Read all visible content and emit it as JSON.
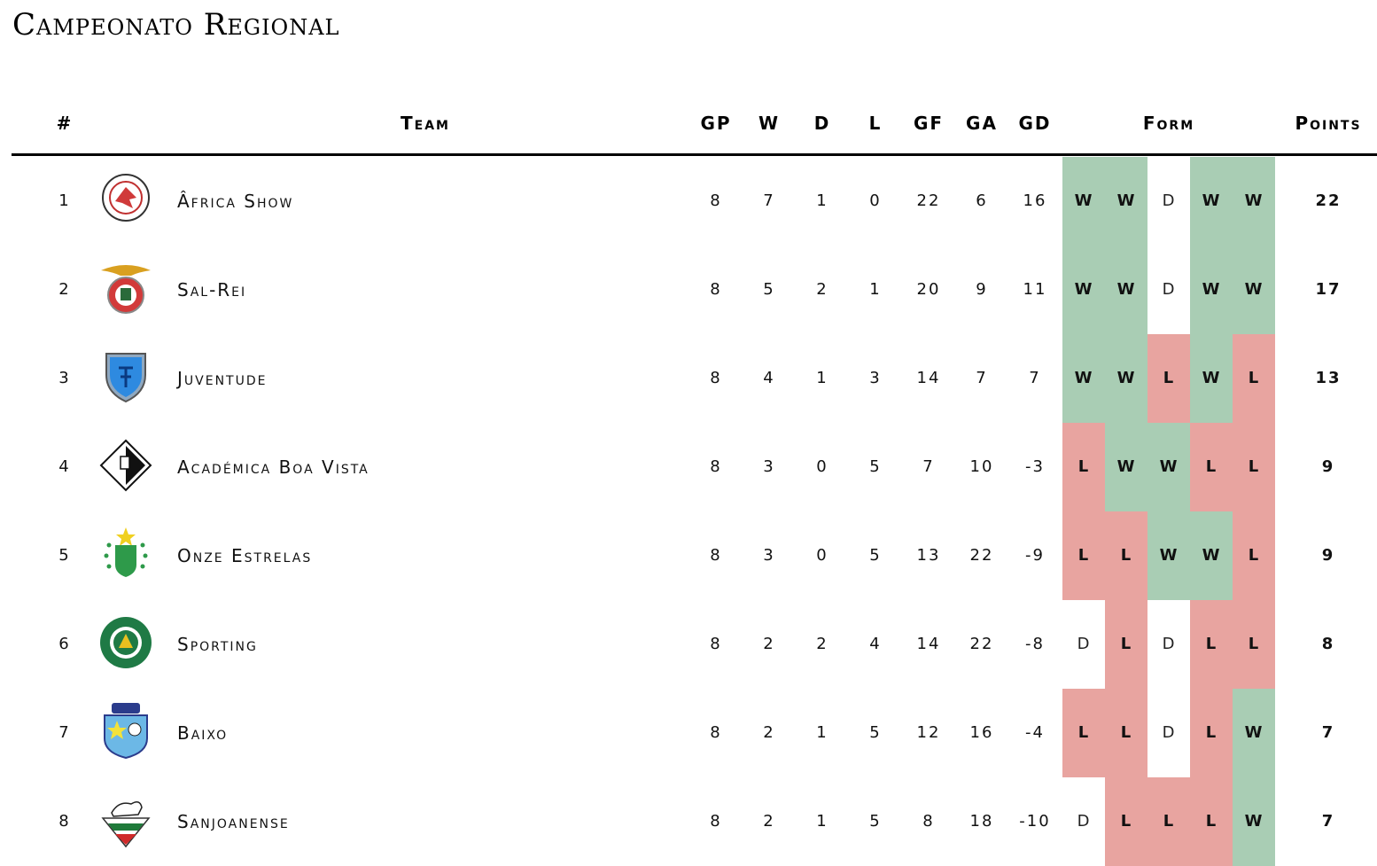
{
  "title": "Campeonato Regional",
  "columns": {
    "rank": "#",
    "team": "Team",
    "gp": "GP",
    "w": "W",
    "d": "D",
    "l": "L",
    "gf": "GF",
    "ga": "GA",
    "gd": "GD",
    "form": "Form",
    "points": "Points"
  },
  "colors": {
    "win": "#a9cdb4",
    "loss": "#e8a4a0",
    "draw": "#ffffff"
  },
  "rows": [
    {
      "rank": "1",
      "team": "Âfrica Show",
      "logo_icon": "africa-show-crest-icon",
      "gp": "8",
      "w": "7",
      "d": "1",
      "l": "0",
      "gf": "22",
      "ga": "6",
      "gd": "16",
      "form": [
        "W",
        "W",
        "D",
        "W",
        "W"
      ],
      "points": "22"
    },
    {
      "rank": "2",
      "team": "Sal-Rei",
      "logo_icon": "eagle-crest-icon",
      "gp": "8",
      "w": "5",
      "d": "2",
      "l": "1",
      "gf": "20",
      "ga": "9",
      "gd": "11",
      "form": [
        "W",
        "W",
        "D",
        "W",
        "W"
      ],
      "points": "17"
    },
    {
      "rank": "3",
      "team": "Juventude",
      "logo_icon": "blue-shield-crest-icon",
      "gp": "8",
      "w": "4",
      "d": "1",
      "l": "3",
      "gf": "14",
      "ga": "7",
      "gd": "7",
      "form": [
        "W",
        "W",
        "L",
        "W",
        "L"
      ],
      "points": "13"
    },
    {
      "rank": "4",
      "team": "Académica Boa Vista",
      "logo_icon": "diamond-crest-icon",
      "gp": "8",
      "w": "3",
      "d": "0",
      "l": "5",
      "gf": "7",
      "ga": "10",
      "gd": "-3",
      "form": [
        "L",
        "W",
        "W",
        "L",
        "L"
      ],
      "points": "9"
    },
    {
      "rank": "5",
      "team": "Onze Estrelas",
      "logo_icon": "green-stars-crest-icon",
      "gp": "8",
      "w": "3",
      "d": "0",
      "l": "5",
      "gf": "13",
      "ga": "22",
      "gd": "-9",
      "form": [
        "L",
        "L",
        "W",
        "W",
        "L"
      ],
      "points": "9"
    },
    {
      "rank": "6",
      "team": "Sporting",
      "logo_icon": "sporting-lion-crest-icon",
      "gp": "8",
      "w": "2",
      "d": "2",
      "l": "4",
      "gf": "14",
      "ga": "22",
      "gd": "-8",
      "form": [
        "D",
        "L",
        "D",
        "L",
        "L"
      ],
      "points": "8"
    },
    {
      "rank": "7",
      "team": "Baixo",
      "logo_icon": "cdeb-crest-icon",
      "gp": "8",
      "w": "2",
      "d": "1",
      "l": "5",
      "gf": "12",
      "ga": "16",
      "gd": "-4",
      "form": [
        "L",
        "L",
        "D",
        "L",
        "W"
      ],
      "points": "7"
    },
    {
      "rank": "8",
      "team": "Sanjoanense",
      "logo_icon": "goat-crest-icon",
      "gp": "8",
      "w": "2",
      "d": "1",
      "l": "5",
      "gf": "8",
      "ga": "18",
      "gd": "-10",
      "form": [
        "D",
        "L",
        "L",
        "L",
        "W"
      ],
      "points": "7"
    }
  ]
}
